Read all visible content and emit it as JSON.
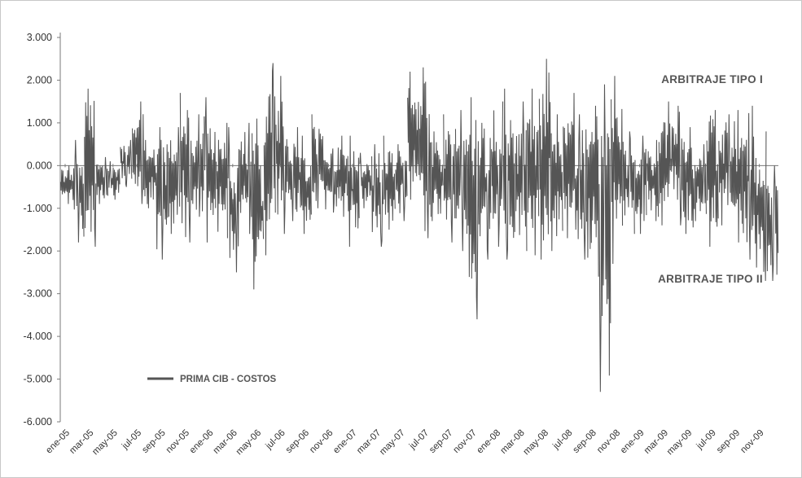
{
  "chart_data": {
    "type": "line",
    "title": "",
    "xlabel": "",
    "ylabel": "",
    "ylim": [
      -6.0,
      3.0
    ],
    "y_ticks": [
      3.0,
      2.0,
      1.0,
      0.0,
      -1.0,
      -2.0,
      -3.0,
      -4.0,
      -5.0,
      -6.0
    ],
    "y_tick_labels": [
      "3.000",
      "2.000",
      "1.000",
      "0.000",
      "-1.000",
      "-2.000",
      "-3.000",
      "-4.000",
      "-5.000",
      "-6.000"
    ],
    "x_tick_labels": [
      "ene-05",
      "mar-05",
      "may-05",
      "jul-05",
      "sep-05",
      "nov-05",
      "ene-06",
      "mar-06",
      "may-06",
      "jul-06",
      "sep-06",
      "nov-06",
      "ene-07",
      "mar-07",
      "may-07",
      "jul-07",
      "sep-07",
      "nov-07",
      "ene-08",
      "mar-08",
      "may-08",
      "jul-08",
      "sep-08",
      "nov-08",
      "ene-09",
      "mar-09",
      "may-09",
      "jul-09",
      "sep-09",
      "nov-09"
    ],
    "legend": {
      "position": "bottom-left",
      "entries": [
        "PRIMA CIB - COSTOS"
      ]
    },
    "annotations": [
      "ARBITRAJE  TIPO  I",
      "ARBITRAJE  TIPO  II"
    ],
    "grid": false,
    "series": [
      {
        "name": "PRIMA CIB - COSTOS",
        "color": "#555555",
        "x": [
          "ene-05",
          "feb-05",
          "mar-05",
          "abr-05",
          "may-05",
          "jun-05",
          "jul-05",
          "ago-05",
          "sep-05",
          "oct-05",
          "nov-05",
          "dic-05",
          "ene-06",
          "feb-06",
          "mar-06",
          "abr-06",
          "may-06",
          "jun-06",
          "jul-06",
          "ago-06",
          "sep-06",
          "oct-06",
          "nov-06",
          "dic-06",
          "ene-07",
          "feb-07",
          "mar-07",
          "abr-07",
          "may-07",
          "jun-07",
          "jul-07",
          "ago-07",
          "sep-07",
          "oct-07",
          "nov-07",
          "dic-07",
          "ene-08",
          "feb-08",
          "mar-08",
          "abr-08",
          "may-08",
          "jun-08",
          "jul-08",
          "ago-08",
          "sep-08",
          "oct-08",
          "nov-08",
          "dic-08",
          "ene-09",
          "feb-09",
          "mar-09",
          "abr-09",
          "may-09",
          "jun-09",
          "jul-09",
          "ago-09",
          "sep-09",
          "oct-09",
          "nov-09",
          "dic-09"
        ],
        "min": [
          -0.9,
          -1.8,
          -1.9,
          -0.9,
          -0.8,
          -0.5,
          -0.9,
          -1.0,
          -2.2,
          -1.6,
          -1.8,
          -1.2,
          -1.8,
          -1.7,
          -2.5,
          -1.6,
          -2.9,
          -2.1,
          -1.6,
          -1.3,
          -1.6,
          -1.0,
          -1.1,
          -1.2,
          -1.9,
          -1.0,
          -1.9,
          -1.5,
          -1.3,
          -0.8,
          -1.7,
          -1.3,
          -1.8,
          -2.0,
          -3.6,
          -2.2,
          -1.9,
          -2.2,
          -2.0,
          -2.1,
          -2.2,
          -2.0,
          -1.7,
          -2.2,
          -2.6,
          -5.3,
          -2.3,
          -1.6,
          -1.6,
          -1.3,
          -1.4,
          -1.4,
          -1.6,
          -1.3,
          -1.9,
          -1.4,
          -1.8,
          -2.2,
          -2.7,
          -2.7
        ],
        "max": [
          0.0,
          0.6,
          1.8,
          0.2,
          0.1,
          0.6,
          1.5,
          0.6,
          0.9,
          0.9,
          1.7,
          1.2,
          1.6,
          1.0,
          0.9,
          1.0,
          1.1,
          2.4,
          2.1,
          0.9,
          0.7,
          1.2,
          0.4,
          0.7,
          0.7,
          0.3,
          0.5,
          0.7,
          0.5,
          2.2,
          2.3,
          0.8,
          1.2,
          1.3,
          1.6,
          1.0,
          1.5,
          1.8,
          1.5,
          1.8,
          2.5,
          1.2,
          1.7,
          1.2,
          1.4,
          1.9,
          2.1,
          0.8,
          0.7,
          0.6,
          1.5,
          1.4,
          0.9,
          0.5,
          1.3,
          1.2,
          1.3,
          1.4,
          0.8,
          0.0
        ]
      }
    ]
  }
}
